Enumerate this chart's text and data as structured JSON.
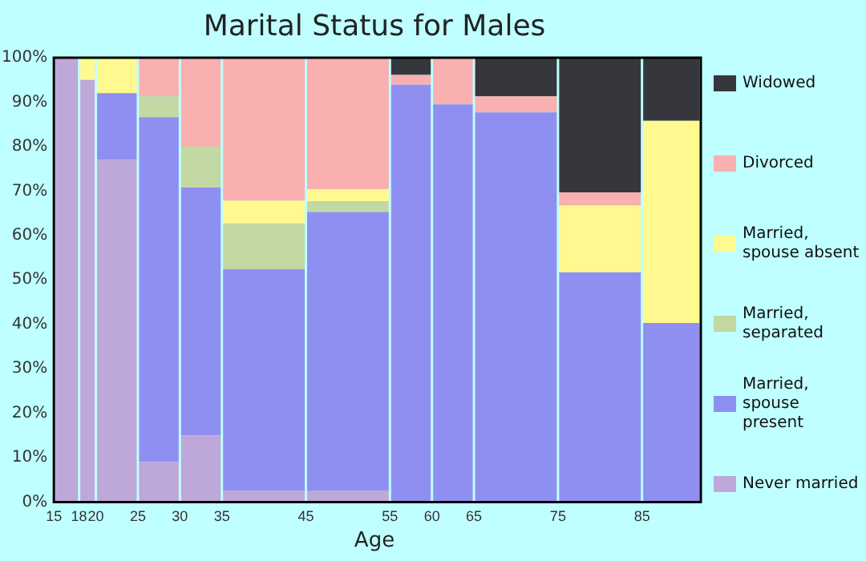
{
  "chart_data": {
    "type": "bar",
    "title": "Marital Status for Males",
    "xlabel": "Age",
    "x": [
      16.5,
      19,
      22.5,
      27.5,
      32.5,
      40,
      50,
      57.5,
      62.5,
      70,
      80,
      88.5
    ],
    "stacked": true,
    "series": [
      {
        "name": "Never married",
        "color": "#bea7d9",
        "values": [
          100,
          95,
          77,
          9,
          15,
          2.6,
          2.6,
          0,
          0,
          0,
          0,
          0
        ]
      },
      {
        "name": "Married, spouse present",
        "color": "#8f8ff2",
        "values": [
          0,
          0,
          15,
          77.6,
          55.8,
          49.8,
          62.7,
          93.9,
          89.5,
          87.7,
          51.7,
          40.3
        ]
      },
      {
        "name": "Married, separated",
        "color": "#c2d9a3",
        "values": [
          0,
          0,
          0,
          4.7,
          9.2,
          10.3,
          2.4,
          0,
          0,
          0,
          0,
          0
        ]
      },
      {
        "name": "Married, spouse absent",
        "color": "#fff98f",
        "values": [
          0,
          5,
          8,
          0,
          0,
          5.1,
          2.7,
          0,
          0,
          0,
          15,
          45.5
        ]
      },
      {
        "name": "Divorced",
        "color": "#f8b0b0",
        "values": [
          0,
          0,
          0,
          8.7,
          20,
          32.2,
          29.6,
          2.2,
          10.5,
          3.6,
          3,
          0
        ]
      },
      {
        "name": "Widowed",
        "color": "#36373c",
        "values": [
          0,
          0,
          0,
          0,
          0,
          0,
          0,
          3.9,
          0,
          8.7,
          30.3,
          14.2
        ]
      }
    ],
    "xlim": [
      15,
      92
    ],
    "xticks": [
      15,
      18,
      20,
      25,
      30,
      35,
      45,
      55,
      60,
      65,
      75,
      85
    ],
    "ylim": [
      0,
      100
    ],
    "yticks": [
      {
        "value": 0,
        "label": "0%"
      },
      {
        "value": 10,
        "label": "10%"
      },
      {
        "value": 20,
        "label": "20%"
      },
      {
        "value": 30,
        "label": "30%"
      },
      {
        "value": 40,
        "label": "40%"
      },
      {
        "value": 50,
        "label": "50%"
      },
      {
        "value": 60,
        "label": "60%"
      },
      {
        "value": 70,
        "label": "70%"
      },
      {
        "value": 80,
        "label": "80%"
      },
      {
        "value": 90,
        "label": "90%"
      },
      {
        "value": 100,
        "label": "100%"
      }
    ],
    "grid": false,
    "legend": "right"
  }
}
